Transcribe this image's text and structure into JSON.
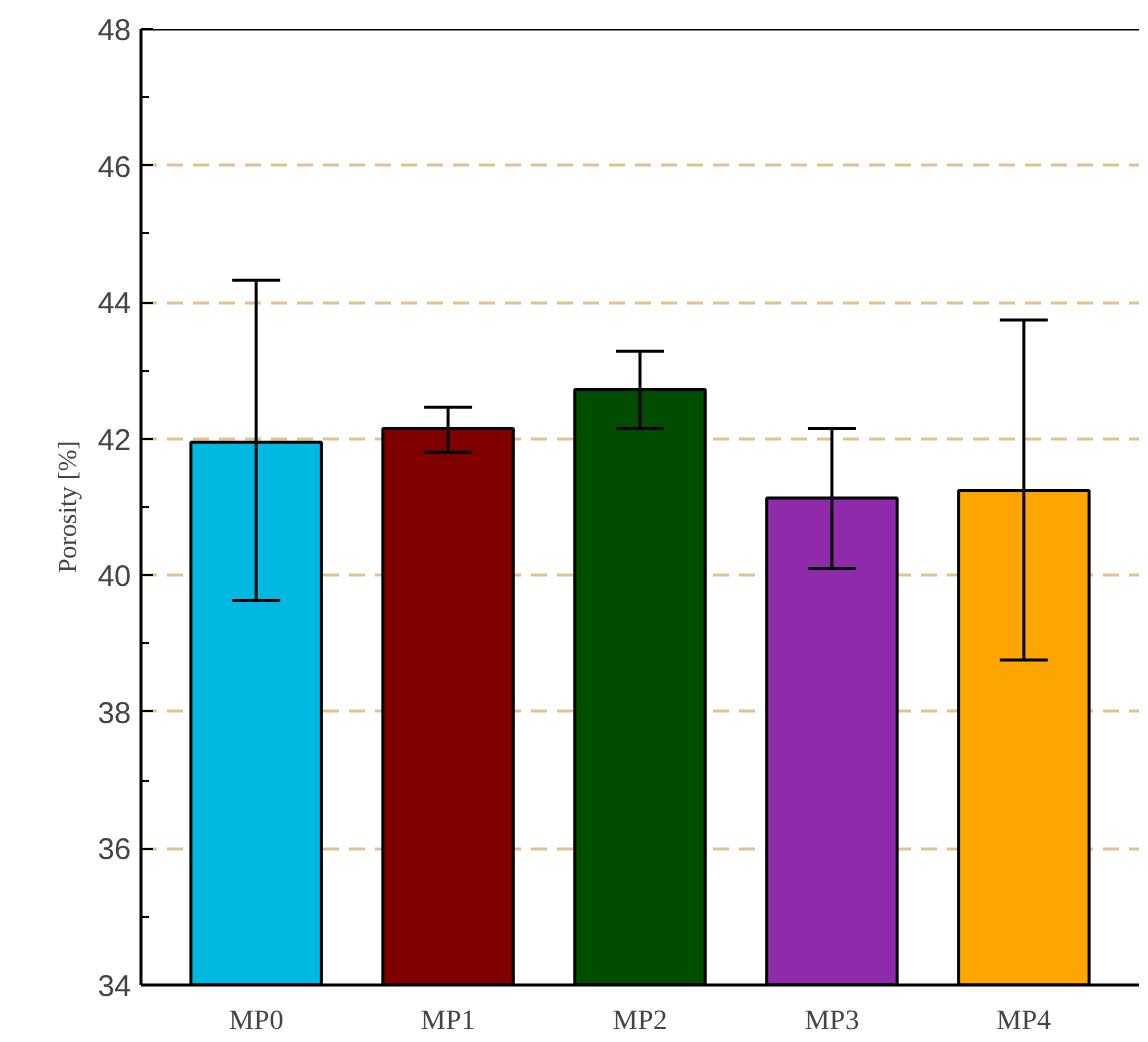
{
  "chart_data": {
    "type": "bar",
    "ylabel": "Porosity [%]",
    "categories": [
      "MP0",
      "MP1",
      "MP2",
      "MP3",
      "MP4"
    ],
    "values": [
      41.95,
      42.15,
      42.72,
      41.13,
      41.24
    ],
    "colors": [
      "#00b9e3",
      "#800000",
      "#004d00",
      "#8f2bab",
      "#ffa500"
    ],
    "errors": [
      [
        39.63,
        44.32
      ],
      [
        41.8,
        42.46
      ],
      [
        42.15,
        43.28
      ],
      [
        40.1,
        42.15
      ],
      [
        38.76,
        43.74
      ]
    ],
    "ylim": [
      34,
      48
    ],
    "yticks": [
      34,
      36,
      38,
      40,
      42,
      44,
      46,
      48
    ],
    "grid": "y"
  }
}
